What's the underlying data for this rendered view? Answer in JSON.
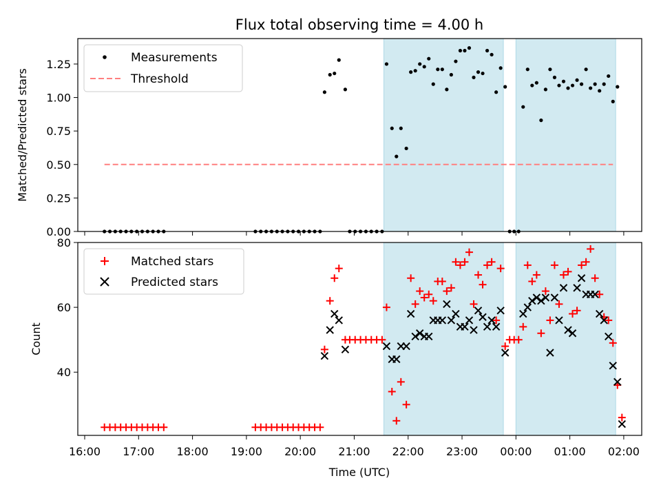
{
  "chart_data": [
    {
      "type": "scatter",
      "title": "Flux total observing time = 4.00 h",
      "xlabel": "",
      "ylabel": "Matched/Predicted stars",
      "ylim": [
        0,
        1.44
      ],
      "yticks": [
        "0.00",
        "0.25",
        "0.50",
        "0.75",
        "1.00",
        "1.25"
      ],
      "grid": false,
      "legend": "top-left",
      "series": [
        {
          "name": "Measurements",
          "marker": "dot",
          "color": "#000000",
          "points": [
            [
              "16:22",
              0
            ],
            [
              "16:28",
              0
            ],
            [
              "16:34",
              0
            ],
            [
              "16:40",
              0
            ],
            [
              "16:46",
              0
            ],
            [
              "16:52",
              0
            ],
            [
              "16:58",
              0
            ],
            [
              "17:04",
              0
            ],
            [
              "17:10",
              0
            ],
            [
              "17:16",
              0
            ],
            [
              "17:22",
              0
            ],
            [
              "17:28",
              0
            ],
            [
              "19:10",
              0
            ],
            [
              "19:16",
              0
            ],
            [
              "19:22",
              0
            ],
            [
              "19:28",
              0
            ],
            [
              "19:34",
              0
            ],
            [
              "19:40",
              0
            ],
            [
              "19:46",
              0
            ],
            [
              "19:52",
              0
            ],
            [
              "19:58",
              0
            ],
            [
              "20:04",
              0
            ],
            [
              "20:10",
              0
            ],
            [
              "20:16",
              0
            ],
            [
              "20:22",
              0
            ],
            [
              "20:27",
              1.04
            ],
            [
              "20:33",
              1.17
            ],
            [
              "20:38",
              1.18
            ],
            [
              "20:43",
              1.28
            ],
            [
              "20:50",
              1.06
            ],
            [
              "20:55",
              0
            ],
            [
              "21:01",
              0
            ],
            [
              "21:07",
              0
            ],
            [
              "21:13",
              0
            ],
            [
              "21:19",
              0
            ],
            [
              "21:25",
              0
            ],
            [
              "21:31",
              0
            ],
            [
              "21:36",
              1.25
            ],
            [
              "21:42",
              0.77
            ],
            [
              "21:47",
              0.56
            ],
            [
              "21:52",
              0.77
            ],
            [
              "21:58",
              0.62
            ],
            [
              "22:03",
              1.19
            ],
            [
              "22:08",
              1.2
            ],
            [
              "22:13",
              1.25
            ],
            [
              "22:18",
              1.23
            ],
            [
              "22:23",
              1.29
            ],
            [
              "22:28",
              1.1
            ],
            [
              "22:33",
              1.21
            ],
            [
              "22:38",
              1.21
            ],
            [
              "22:43",
              1.06
            ],
            [
              "22:48",
              1.17
            ],
            [
              "22:53",
              1.27
            ],
            [
              "22:58",
              1.35
            ],
            [
              "23:03",
              1.35
            ],
            [
              "23:08",
              1.37
            ],
            [
              "23:13",
              1.15
            ],
            [
              "23:18",
              1.19
            ],
            [
              "23:23",
              1.18
            ],
            [
              "23:28",
              1.35
            ],
            [
              "23:33",
              1.32
            ],
            [
              "23:38",
              1.04
            ],
            [
              "23:43",
              1.22
            ],
            [
              "23:48",
              1.08
            ],
            [
              "23:53",
              0
            ],
            [
              "23:58",
              0
            ],
            [
              "00:03",
              0
            ],
            [
              "00:08",
              0.93
            ],
            [
              "00:13",
              1.21
            ],
            [
              "00:18",
              1.09
            ],
            [
              "00:23",
              1.11
            ],
            [
              "00:28",
              0.83
            ],
            [
              "00:33",
              1.06
            ],
            [
              "00:38",
              1.21
            ],
            [
              "00:43",
              1.15
            ],
            [
              "00:48",
              1.09
            ],
            [
              "00:53",
              1.12
            ],
            [
              "00:58",
              1.07
            ],
            [
              "01:03",
              1.09
            ],
            [
              "01:08",
              1.13
            ],
            [
              "01:13",
              1.1
            ],
            [
              "01:18",
              1.21
            ],
            [
              "01:23",
              1.07
            ],
            [
              "01:28",
              1.1
            ],
            [
              "01:33",
              1.05
            ],
            [
              "01:38",
              1.1
            ],
            [
              "01:43",
              1.16
            ],
            [
              "01:48",
              0.97
            ],
            [
              "01:53",
              1.08
            ]
          ]
        },
        {
          "name": "Threshold",
          "style": "dashed",
          "color": "#ff7f7f",
          "points": [
            [
              "16:22",
              0.5
            ],
            [
              "01:48",
              0.5
            ]
          ]
        }
      ]
    },
    {
      "type": "scatter",
      "title": "",
      "xlabel": "Time (UTC)",
      "ylabel": "Count",
      "ylim": [
        20.5,
        80
      ],
      "yticks": [
        "40",
        "60",
        "80"
      ],
      "grid": false,
      "legend": "top-left",
      "series": [
        {
          "name": "Matched stars",
          "marker": "plus",
          "color": "#ff0000",
          "points": [
            [
              "16:22",
              23
            ],
            [
              "16:28",
              23
            ],
            [
              "16:34",
              23
            ],
            [
              "16:40",
              23
            ],
            [
              "16:46",
              23
            ],
            [
              "16:52",
              23
            ],
            [
              "16:58",
              23
            ],
            [
              "17:04",
              23
            ],
            [
              "17:10",
              23
            ],
            [
              "17:16",
              23
            ],
            [
              "17:22",
              23
            ],
            [
              "17:28",
              23
            ],
            [
              "19:10",
              23
            ],
            [
              "19:16",
              23
            ],
            [
              "19:22",
              23
            ],
            [
              "19:28",
              23
            ],
            [
              "19:34",
              23
            ],
            [
              "19:40",
              23
            ],
            [
              "19:46",
              23
            ],
            [
              "19:52",
              23
            ],
            [
              "19:58",
              23
            ],
            [
              "20:04",
              23
            ],
            [
              "20:10",
              23
            ],
            [
              "20:16",
              23
            ],
            [
              "20:22",
              23
            ],
            [
              "20:27",
              47
            ],
            [
              "20:33",
              62
            ],
            [
              "20:38",
              69
            ],
            [
              "20:43",
              72
            ],
            [
              "20:50",
              50
            ],
            [
              "20:55",
              50
            ],
            [
              "21:01",
              50
            ],
            [
              "21:07",
              50
            ],
            [
              "21:13",
              50
            ],
            [
              "21:19",
              50
            ],
            [
              "21:25",
              50
            ],
            [
              "21:31",
              50
            ],
            [
              "21:36",
              60
            ],
            [
              "21:42",
              34
            ],
            [
              "21:47",
              25
            ],
            [
              "21:52",
              37
            ],
            [
              "21:58",
              30
            ],
            [
              "22:03",
              69
            ],
            [
              "22:08",
              61
            ],
            [
              "22:13",
              65
            ],
            [
              "22:18",
              63
            ],
            [
              "22:23",
              64
            ],
            [
              "22:28",
              62
            ],
            [
              "22:33",
              68
            ],
            [
              "22:38",
              68
            ],
            [
              "22:43",
              65
            ],
            [
              "22:48",
              66
            ],
            [
              "22:53",
              74
            ],
            [
              "22:58",
              73
            ],
            [
              "23:03",
              74
            ],
            [
              "23:08",
              77
            ],
            [
              "23:13",
              61
            ],
            [
              "23:18",
              70
            ],
            [
              "23:23",
              67
            ],
            [
              "23:28",
              73
            ],
            [
              "23:33",
              74
            ],
            [
              "23:38",
              56
            ],
            [
              "23:43",
              72
            ],
            [
              "23:48",
              48
            ],
            [
              "23:53",
              50
            ],
            [
              "23:58",
              50
            ],
            [
              "00:03",
              50
            ],
            [
              "00:08",
              54
            ],
            [
              "00:13",
              73
            ],
            [
              "00:18",
              68
            ],
            [
              "00:23",
              70
            ],
            [
              "00:28",
              52
            ],
            [
              "00:33",
              65
            ],
            [
              "00:38",
              56
            ],
            [
              "00:43",
              73
            ],
            [
              "00:48",
              61
            ],
            [
              "00:53",
              70
            ],
            [
              "00:58",
              71
            ],
            [
              "01:03",
              58
            ],
            [
              "01:08",
              59
            ],
            [
              "01:13",
              73
            ],
            [
              "01:18",
              74
            ],
            [
              "01:23",
              78
            ],
            [
              "01:28",
              69
            ],
            [
              "01:33",
              64
            ],
            [
              "01:38",
              57
            ],
            [
              "01:43",
              56
            ],
            [
              "01:48",
              49
            ],
            [
              "01:53",
              36
            ],
            [
              "01:58",
              26
            ]
          ]
        },
        {
          "name": "Predicted stars",
          "marker": "cross",
          "color": "#000000",
          "points": [
            [
              "20:27",
              45
            ],
            [
              "20:33",
              53
            ],
            [
              "20:38",
              58
            ],
            [
              "20:43",
              56
            ],
            [
              "20:50",
              47
            ],
            [
              "21:36",
              48
            ],
            [
              "21:42",
              44
            ],
            [
              "21:47",
              44
            ],
            [
              "21:52",
              48
            ],
            [
              "21:58",
              48
            ],
            [
              "22:03",
              58
            ],
            [
              "22:08",
              51
            ],
            [
              "22:13",
              52
            ],
            [
              "22:18",
              51
            ],
            [
              "22:23",
              51
            ],
            [
              "22:28",
              56
            ],
            [
              "22:33",
              56
            ],
            [
              "22:38",
              56
            ],
            [
              "22:43",
              61
            ],
            [
              "22:48",
              56
            ],
            [
              "22:53",
              58
            ],
            [
              "22:58",
              54
            ],
            [
              "23:03",
              54
            ],
            [
              "23:08",
              56
            ],
            [
              "23:13",
              53
            ],
            [
              "23:18",
              59
            ],
            [
              "23:23",
              57
            ],
            [
              "23:28",
              54
            ],
            [
              "23:33",
              56
            ],
            [
              "23:38",
              54
            ],
            [
              "23:43",
              59
            ],
            [
              "23:48",
              46
            ],
            [
              "00:08",
              58
            ],
            [
              "00:13",
              60
            ],
            [
              "00:18",
              62
            ],
            [
              "00:23",
              63
            ],
            [
              "00:28",
              62
            ],
            [
              "00:33",
              63
            ],
            [
              "00:38",
              46
            ],
            [
              "00:43",
              63
            ],
            [
              "00:48",
              56
            ],
            [
              "00:53",
              66
            ],
            [
              "00:58",
              53
            ],
            [
              "01:03",
              52
            ],
            [
              "01:08",
              66
            ],
            [
              "01:13",
              69
            ],
            [
              "01:18",
              64
            ],
            [
              "01:23",
              64
            ],
            [
              "01:28",
              64
            ],
            [
              "01:33",
              58
            ],
            [
              "01:38",
              56
            ],
            [
              "01:43",
              51
            ],
            [
              "01:48",
              42
            ],
            [
              "01:53",
              37
            ],
            [
              "01:58",
              24
            ]
          ]
        }
      ]
    }
  ],
  "shared_x": {
    "range": [
      "16:00",
      "02:20"
    ],
    "ticks": [
      "16:00",
      "17:00",
      "18:00",
      "19:00",
      "20:00",
      "21:00",
      "22:00",
      "23:00",
      "00:00",
      "01:00",
      "02:00"
    ]
  },
  "shaded_intervals": [
    {
      "start": "21:33",
      "end": "23:46",
      "color": "#add8e6"
    },
    {
      "start": "00:00",
      "end": "01:51",
      "color": "#add8e6"
    }
  ]
}
